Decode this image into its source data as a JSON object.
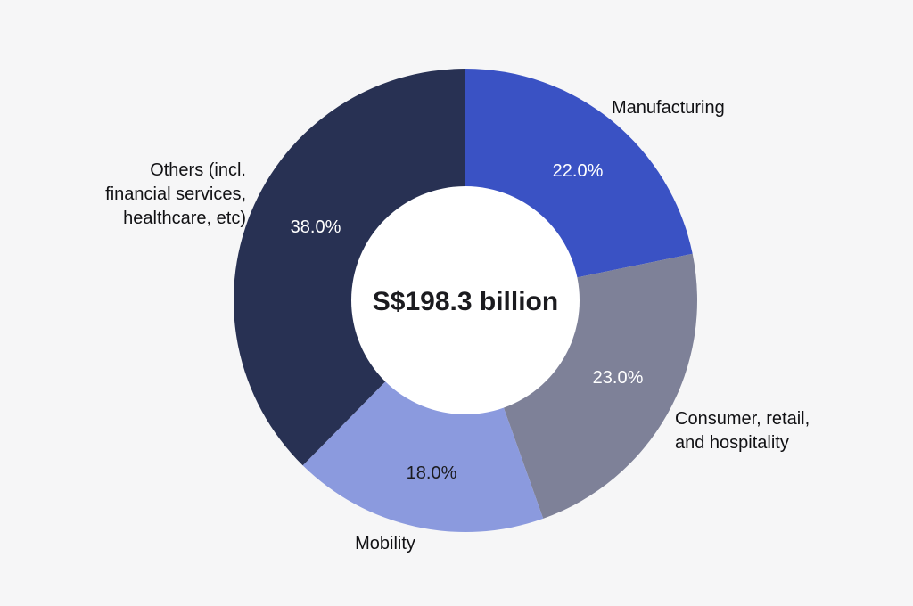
{
  "chart_data": {
    "type": "pie",
    "variant": "donut",
    "center_label": "S$198.3 billion",
    "categories": [
      "Manufacturing",
      "Consumer, retail, and hospitality",
      "Mobility",
      "Others (incl. financial services, healthcare, etc)"
    ],
    "values": [
      22.0,
      23.0,
      18.0,
      38.0
    ],
    "value_labels": [
      "22.0%",
      "23.0%",
      "18.0%",
      "38.0%"
    ],
    "slices": [
      {
        "name": "Manufacturing",
        "label_lines": [
          "Manufacturing"
        ],
        "value": 22.0,
        "value_label": "22.0%",
        "color": "#3a52c4",
        "value_label_color": "#ffffff"
      },
      {
        "name": "Consumer, retail, and hospitality",
        "label_lines": [
          "Consumer, retail,",
          "and hospitality"
        ],
        "value": 23.0,
        "value_label": "23.0%",
        "color": "#7e8198",
        "value_label_color": "#ffffff"
      },
      {
        "name": "Mobility",
        "label_lines": [
          "Mobility"
        ],
        "value": 18.0,
        "value_label": "18.0%",
        "color": "#8b9ade",
        "value_label_color": "#1b1b1f"
      },
      {
        "name": "Others (incl. financial services, healthcare, etc)",
        "label_lines": [
          "Others (incl.",
          "financial services,",
          "healthcare, etc)"
        ],
        "value": 38.0,
        "value_label": "38.0%",
        "color": "#283153",
        "value_label_color": "#ffffff"
      }
    ],
    "background_color": "#f6f6f7"
  }
}
